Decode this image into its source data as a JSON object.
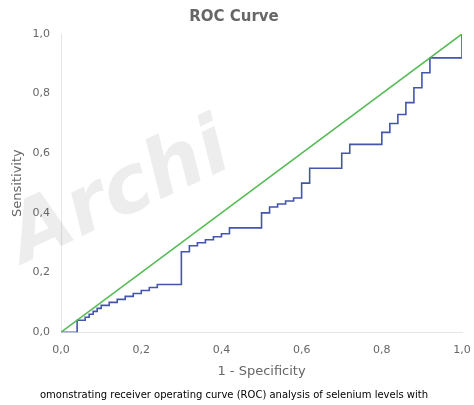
{
  "chart_data": {
    "type": "line",
    "title": "ROC Curve",
    "x_label": "1 - Specificity",
    "y_label": "Sensitivity",
    "xlim": [
      0.0,
      1.0
    ],
    "ylim": [
      0.0,
      1.0
    ],
    "xticks": [
      {
        "value": 0.0,
        "label": "0,0"
      },
      {
        "value": 0.2,
        "label": "0,2"
      },
      {
        "value": 0.4,
        "label": "0,4"
      },
      {
        "value": 0.6,
        "label": "0,6"
      },
      {
        "value": 0.8,
        "label": "0,8"
      },
      {
        "value": 1.0,
        "label": "1,0"
      }
    ],
    "yticks": [
      {
        "value": 0.0,
        "label": "0,0"
      },
      {
        "value": 0.2,
        "label": "0,2"
      },
      {
        "value": 0.4,
        "label": "0,4"
      },
      {
        "value": 0.6,
        "label": "0,6"
      },
      {
        "value": 0.8,
        "label": "0,8"
      },
      {
        "value": 1.0,
        "label": "1,0"
      }
    ],
    "grid": false,
    "series": [
      {
        "color": "#55bb55",
        "x": [
          0,
          1
        ],
        "values": [
          0,
          1
        ]
      },
      {
        "color": "#4455aa",
        "x": [
          0.0,
          0.04,
          0.04,
          0.06,
          0.06,
          0.07,
          0.07,
          0.08,
          0.08,
          0.09,
          0.09,
          0.1,
          0.1,
          0.12,
          0.12,
          0.14,
          0.14,
          0.16,
          0.16,
          0.18,
          0.18,
          0.2,
          0.2,
          0.22,
          0.22,
          0.24,
          0.24,
          0.3,
          0.3,
          0.32,
          0.32,
          0.34,
          0.34,
          0.36,
          0.36,
          0.38,
          0.38,
          0.4,
          0.4,
          0.42,
          0.42,
          0.5,
          0.5,
          0.52,
          0.52,
          0.54,
          0.54,
          0.56,
          0.56,
          0.58,
          0.58,
          0.6,
          0.6,
          0.62,
          0.62,
          0.7,
          0.7,
          0.72,
          0.72,
          0.8,
          0.8,
          0.82,
          0.82,
          0.84,
          0.84,
          0.86,
          0.86,
          0.88,
          0.88,
          0.9,
          0.9,
          0.92,
          0.92,
          1.0,
          1.0
        ],
        "values": [
          0.0,
          0.0,
          0.04,
          0.04,
          0.05,
          0.05,
          0.06,
          0.06,
          0.07,
          0.07,
          0.08,
          0.08,
          0.09,
          0.09,
          0.1,
          0.1,
          0.11,
          0.11,
          0.12,
          0.12,
          0.13,
          0.13,
          0.14,
          0.14,
          0.15,
          0.15,
          0.16,
          0.16,
          0.27,
          0.27,
          0.29,
          0.29,
          0.3,
          0.3,
          0.31,
          0.31,
          0.32,
          0.32,
          0.33,
          0.33,
          0.35,
          0.35,
          0.4,
          0.4,
          0.42,
          0.42,
          0.43,
          0.43,
          0.44,
          0.44,
          0.45,
          0.45,
          0.5,
          0.5,
          0.55,
          0.55,
          0.6,
          0.6,
          0.63,
          0.63,
          0.67,
          0.67,
          0.7,
          0.7,
          0.73,
          0.73,
          0.77,
          0.77,
          0.82,
          0.82,
          0.87,
          0.87,
          0.92,
          0.92,
          1.0
        ]
      }
    ],
    "annotations": [
      "Archi",
      "omonstrating receiver operating curve (ROC) analysis of selenium levels with"
    ]
  }
}
